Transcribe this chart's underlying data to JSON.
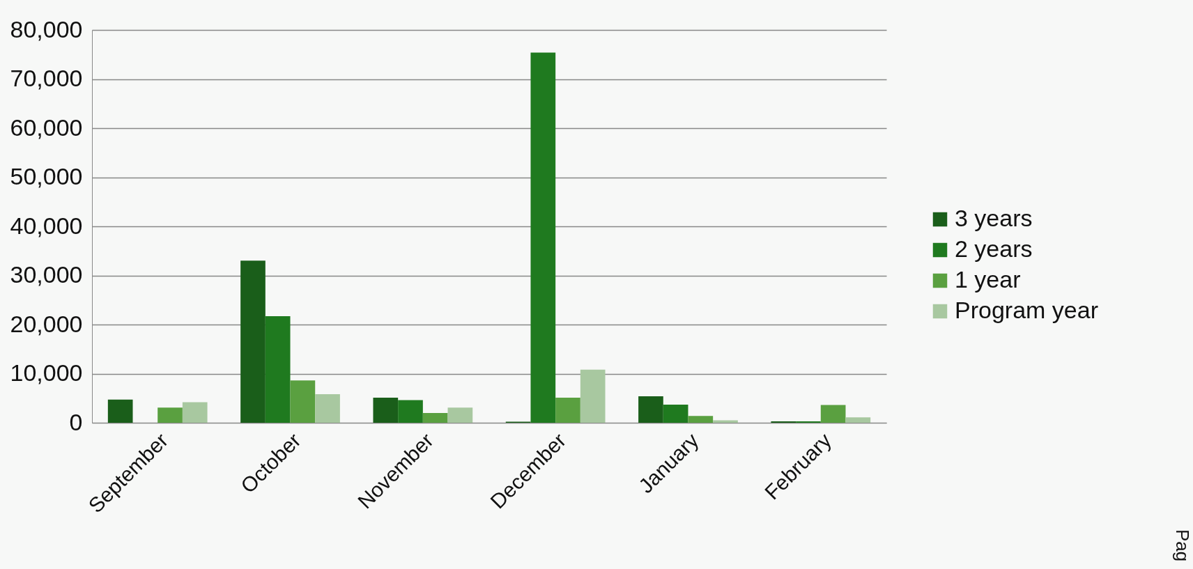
{
  "chart_data": {
    "type": "bar",
    "categories": [
      "September",
      "October",
      "November",
      "December",
      "January",
      "February"
    ],
    "series": [
      {
        "name": "3 years",
        "color": "#1a5e1a",
        "values": [
          4700,
          33000,
          5100,
          200,
          5400,
          300
        ]
      },
      {
        "name": "2 years",
        "color": "#1f7a1f",
        "values": [
          null,
          21700,
          4600,
          75400,
          3700,
          300
        ]
      },
      {
        "name": "1 year",
        "color": "#5aa040",
        "values": [
          3100,
          8600,
          2000,
          5100,
          1400,
          3600
        ]
      },
      {
        "name": "Program year",
        "color": "#a8c8a0",
        "values": [
          4200,
          5800,
          3100,
          10800,
          500,
          1100
        ]
      }
    ],
    "ylim": [
      0,
      80000
    ],
    "yticks": [
      0,
      {
        "value": 10000,
        "label": "10,000"
      },
      {
        "value": 20000,
        "label": "20,000"
      },
      {
        "value": 30000,
        "label": "30,000"
      },
      {
        "value": 40000,
        "label": "40,000"
      },
      {
        "value": 50000,
        "label": "50,000"
      },
      {
        "value": 60000,
        "label": "60,000"
      },
      {
        "value": 70000,
        "label": "70,000"
      },
      {
        "value": 80000,
        "label": "80,000"
      }
    ],
    "grid": "y",
    "legend": "right",
    "annotations": [
      "Pag"
    ]
  }
}
